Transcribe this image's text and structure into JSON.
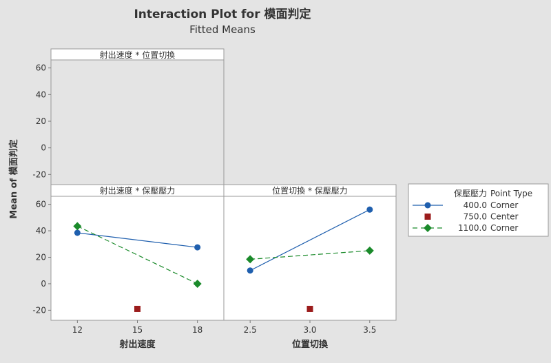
{
  "chart_data": {
    "type": "line",
    "title": "Interaction Plot for 模面判定",
    "subtitle": "Fitted Means",
    "ylabel": "Mean of 模面判定",
    "ylim": [
      -25,
      65
    ],
    "yticks": [
      -20,
      0,
      20,
      40,
      60
    ],
    "grid": false,
    "legend": {
      "placement": "right",
      "header_factor": "保壓壓力",
      "header_type": "Point Type",
      "entries": [
        {
          "level": "400.0",
          "type": "Corner",
          "color": "#1f5fae",
          "marker": "circle",
          "line": "solid"
        },
        {
          "level": "750.0",
          "type": "Center",
          "color": "#9b1c1c",
          "marker": "square",
          "line": "none"
        },
        {
          "level": "1100.0",
          "type": "Corner",
          "color": "#1a8a2a",
          "marker": "diamond",
          "line": "dashed"
        }
      ]
    },
    "panels": [
      {
        "title": "射出速度 * 位置切換",
        "empty": true
      },
      {
        "title": "射出速度 * 保壓壓力",
        "xlabel": "射出速度",
        "xticks": [
          "12",
          "15",
          "18"
        ],
        "xvalues": [
          12,
          15,
          18
        ],
        "series": [
          {
            "level": "400.0",
            "x": [
              12,
              18
            ],
            "y": [
              38.5,
              27.5
            ]
          },
          {
            "level": "750.0",
            "x": [
              15
            ],
            "y": [
              -19
            ]
          },
          {
            "level": "1100.0",
            "x": [
              12,
              18
            ],
            "y": [
              43.5,
              0
            ]
          }
        ]
      },
      {
        "title": "位置切換 * 保壓壓力",
        "xlabel": "位置切換",
        "xticks": [
          "2.5",
          "3.0",
          "3.5"
        ],
        "xvalues": [
          2.5,
          3.0,
          3.5
        ],
        "series": [
          {
            "level": "400.0",
            "x": [
              2.5,
              3.5
            ],
            "y": [
              10,
              56
            ]
          },
          {
            "level": "750.0",
            "x": [
              3.0
            ],
            "y": [
              -19
            ]
          },
          {
            "level": "1100.0",
            "x": [
              2.5,
              3.5
            ],
            "y": [
              18.5,
              25
            ]
          }
        ]
      }
    ]
  }
}
